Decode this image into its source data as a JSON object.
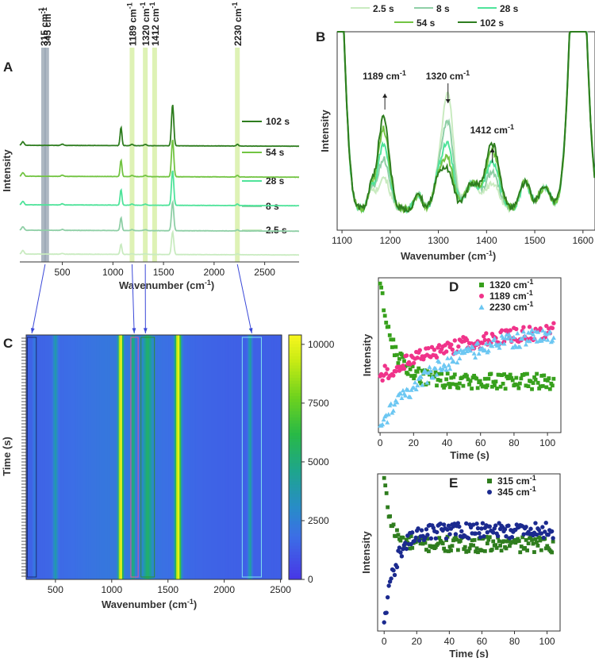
{
  "colors": {
    "s2_5": "#c9ebc0",
    "s8": "#8fcfa6",
    "s28": "#4fe39a",
    "s54": "#72c442",
    "s102": "#2e7d1f",
    "c1320": "#37a01c",
    "c1189": "#f0338a",
    "c2230": "#6cc7f2",
    "c315": "#2f7d1e",
    "c345": "#1b2a8f",
    "highlight": "#d8f0a8",
    "highlight_blue": "#9aa6b4",
    "arrow": "#3a48d8"
  },
  "chart_data": [
    {
      "id": "A",
      "type": "line",
      "panel_label": "A",
      "xlabel": "Wavenumber (cm",
      "xlabel_sup": "-1",
      "xlabel_end": ")",
      "ylabel": "Intensity",
      "xlim": [
        80,
        2840
      ],
      "x_ticks": [
        "500",
        "1000",
        "1500",
        "2000",
        "2500"
      ],
      "x_tick_values": [
        500,
        1000,
        1500,
        2000,
        2500
      ],
      "series": [
        {
          "name": "2.5 s",
          "offset": 0,
          "scale": 0.55
        },
        {
          "name": "8 s",
          "offset": 1,
          "scale": 0.7
        },
        {
          "name": "28 s",
          "offset": 2,
          "scale": 0.85
        },
        {
          "name": "54 s",
          "offset": 3,
          "scale": 0.9
        },
        {
          "name": "102 s",
          "offset": 4,
          "scale": 1.0
        }
      ],
      "peaks": [
        {
          "x": 1080,
          "h": 0.42,
          "w": 9
        },
        {
          "x": 1590,
          "h": 0.95,
          "w": 11
        },
        {
          "x": 1189,
          "h": 0.03,
          "w": 12
        },
        {
          "x": 1320,
          "h": 0.03,
          "w": 14
        },
        {
          "x": 2230,
          "h": 0.04,
          "w": 10
        },
        {
          "x": 500,
          "h": 0.03,
          "w": 12
        }
      ],
      "highlight_bands": [
        {
          "label": "315 cm",
          "x": 315
        },
        {
          "label": "345 cm",
          "x": 345
        },
        {
          "label": "1189 cm",
          "x": 1189
        },
        {
          "label": "1320 cm",
          "x": 1320
        },
        {
          "label": "1412 cm",
          "x": 1412
        },
        {
          "label": "2230 cm",
          "x": 2230
        }
      ],
      "band_sup": "-1"
    },
    {
      "id": "B",
      "type": "line",
      "panel_label": "B",
      "xlabel": "Wavenumber (cm",
      "xlabel_sup": "-1",
      "xlabel_end": ")",
      "ylabel": "Intensity",
      "xlim": [
        1090,
        1625
      ],
      "x_ticks": [
        "1100",
        "1200",
        "1300",
        "1400",
        "1500",
        "1600"
      ],
      "x_tick_values": [
        1100,
        1200,
        1300,
        1400,
        1500,
        1600
      ],
      "legend_top": [
        "2.5 s",
        "8 s",
        "28 s"
      ],
      "legend_bottom": [
        "54 s",
        "102 s"
      ],
      "series": [
        {
          "name": "2.5 s",
          "p1189": 0.18,
          "p1320": 0.62,
          "p1412": 0.14
        },
        {
          "name": "8 s",
          "p1189": 0.28,
          "p1320": 0.46,
          "p1412": 0.2
        },
        {
          "name": "28 s",
          "p1189": 0.36,
          "p1320": 0.34,
          "p1412": 0.26
        },
        {
          "name": "54 s",
          "p1189": 0.44,
          "p1320": 0.26,
          "p1412": 0.32
        },
        {
          "name": "102 s",
          "p1189": 0.5,
          "p1320": 0.2,
          "p1412": 0.36
        }
      ],
      "annotations": [
        {
          "text": "1189 cm",
          "sup": "-1",
          "x": 1189,
          "arrow": "up"
        },
        {
          "text": "1320 cm",
          "sup": "-1",
          "x": 1320,
          "arrow": "down"
        },
        {
          "text": "1412 cm",
          "sup": "-1",
          "x": 1412,
          "arrow": "up"
        }
      ]
    },
    {
      "id": "C",
      "type": "heatmap",
      "panel_label": "C",
      "xlabel": "Wavenumber (cm",
      "xlabel_sup": "-1",
      "xlabel_end": ")",
      "ylabel": "Time (s)",
      "xlim": [
        240,
        2510
      ],
      "x_ticks": [
        "500",
        "1000",
        "1500",
        "2000",
        "2500"
      ],
      "x_tick_values": [
        500,
        1000,
        1500,
        2000,
        2500
      ],
      "colorbar_ticks": [
        "10000",
        "7500",
        "5000",
        "2500",
        "0"
      ],
      "colorbar_values": [
        10000,
        7500,
        5000,
        2500,
        0
      ],
      "zlim": [
        0,
        10400
      ],
      "background_level": 1400,
      "bands": [
        {
          "x": 1080,
          "level": 10000,
          "w": 14
        },
        {
          "x": 1590,
          "level": 10000,
          "w": 18
        },
        {
          "x": 500,
          "level": 3600,
          "w": 14
        },
        {
          "x": 1189,
          "level": 4400,
          "w": 12
        },
        {
          "x": 1320,
          "level": 4600,
          "w": 28
        },
        {
          "x": 2230,
          "level": 4200,
          "w": 12
        },
        {
          "x": 315,
          "level": 2200,
          "w": 10
        }
      ]
    },
    {
      "id": "D",
      "type": "scatter",
      "panel_label": "D",
      "xlabel": "Time (s)",
      "ylabel": "Intensity",
      "xlim": [
        -1,
        108
      ],
      "x_ticks": [
        "0",
        "20",
        "40",
        "60",
        "80",
        "100"
      ],
      "x_tick_values": [
        0,
        20,
        40,
        60,
        80,
        100
      ],
      "series": [
        {
          "name": "1320 cm",
          "sup": "-1",
          "marker": "square",
          "start": 0.97,
          "end": 0.33,
          "tau": 8,
          "drift": 0.0
        },
        {
          "name": "1189 cm",
          "sup": "-1",
          "marker": "circle",
          "start": 0.37,
          "end": 0.72,
          "tau": 60,
          "drift": 0.0
        },
        {
          "name": "2230 cm",
          "sup": "-1",
          "marker": "triangle",
          "start": 0.05,
          "end": 0.68,
          "tau": 40,
          "drift": 0.0
        }
      ]
    },
    {
      "id": "E",
      "type": "scatter",
      "panel_label": "E",
      "xlabel": "Time (s)",
      "ylabel": "Intensity",
      "xlim": [
        -4,
        108
      ],
      "x_ticks": [
        "0",
        "20",
        "40",
        "60",
        "80",
        "100"
      ],
      "x_tick_values": [
        0,
        20,
        40,
        60,
        80,
        100
      ],
      "series": [
        {
          "name": "315 cm",
          "sup": "-1",
          "marker": "square",
          "start": 0.97,
          "end": 0.55,
          "tau": 4
        },
        {
          "name": "345 cm",
          "sup": "-1",
          "marker": "circle",
          "start": 0.05,
          "end": 0.64,
          "tau": 7
        }
      ]
    }
  ]
}
